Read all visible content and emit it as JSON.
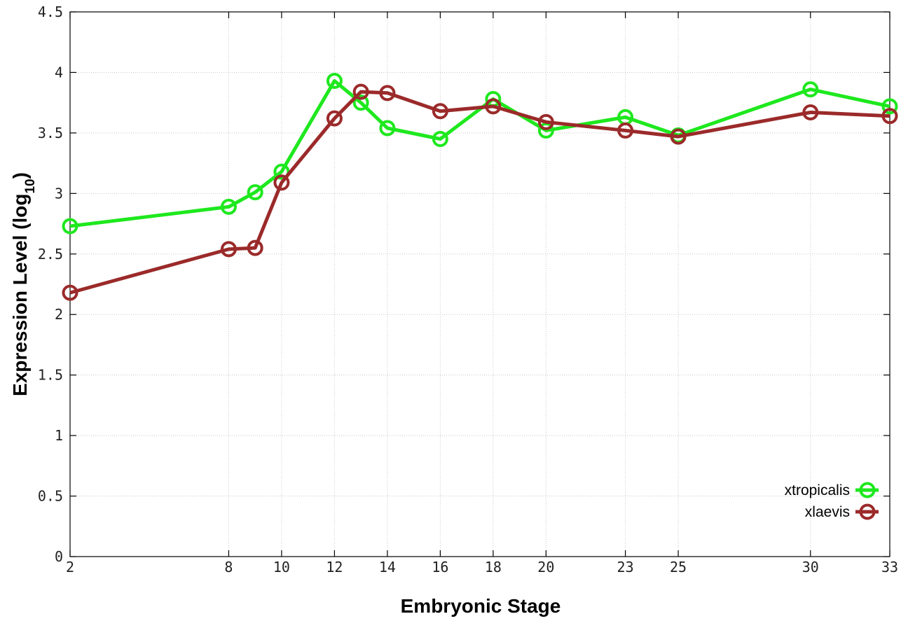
{
  "chart_data": {
    "type": "line",
    "title": "",
    "xlabel": "Embryonic Stage",
    "ylabel_main": "Expression Level (log",
    "ylabel_sub": "10",
    "ylabel_close": ")",
    "xlim": [
      2,
      33
    ],
    "ylim": [
      0,
      4.5
    ],
    "x_ticks": [
      2,
      8,
      10,
      12,
      14,
      16,
      18,
      20,
      23,
      25,
      30,
      33
    ],
    "x_tick_labels": [
      "2",
      "8",
      "10",
      "12",
      "14",
      "16",
      "18",
      "20",
      "23",
      "25",
      "30",
      "33"
    ],
    "y_ticks": [
      0,
      0.5,
      1,
      1.5,
      2,
      2.5,
      3,
      3.5,
      4,
      4.5
    ],
    "y_tick_labels": [
      "0",
      "0.5",
      "1",
      "1.5",
      "2",
      "2.5",
      "3",
      "3.5",
      "4",
      "4.5"
    ],
    "grid": true,
    "legend_position": "bottom-right",
    "series": [
      {
        "name": "xtropicalis",
        "color": "#1ee81e",
        "x": [
          2,
          8,
          9,
          10,
          12,
          13,
          14,
          16,
          18,
          20,
          23,
          25,
          30,
          33
        ],
        "values": [
          2.73,
          2.89,
          3.01,
          3.18,
          3.93,
          3.75,
          3.54,
          3.45,
          3.78,
          3.52,
          3.63,
          3.48,
          3.86,
          3.72
        ]
      },
      {
        "name": "xlaevis",
        "color": "#9b2a2a",
        "x": [
          2,
          8,
          9,
          10,
          12,
          13,
          14,
          16,
          18,
          20,
          23,
          25,
          30,
          33
        ],
        "values": [
          2.18,
          2.54,
          2.55,
          3.09,
          3.62,
          3.84,
          3.83,
          3.68,
          3.72,
          3.59,
          3.52,
          3.47,
          3.67,
          3.64
        ]
      }
    ]
  }
}
